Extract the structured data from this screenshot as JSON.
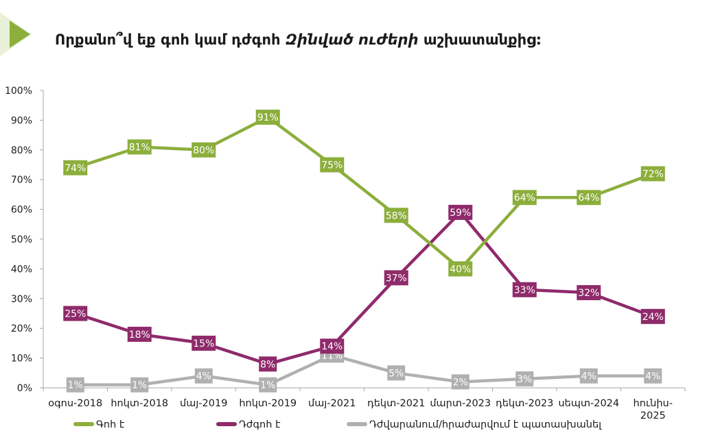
{
  "header": {
    "title_parts": [
      "Որքանո՞վ եք գոհ կամ դժգոհ ",
      "Զինված ուժերի",
      " աշխատանքից:"
    ]
  },
  "colors": {
    "green": "#8cae3c",
    "purple": "#8f2a6b",
    "gray": "#b0b0b0",
    "deco": "#e8f0d7"
  },
  "chart_data": {
    "type": "line",
    "categories": [
      "օգոս-2018",
      "հոկտ-2018",
      "մայ-2019",
      "հոկտ-2019",
      "մայ-2021",
      "դեկտ-2021",
      "մարտ-2023",
      "դեկտ-2023",
      "սեպտ-2024",
      "հունիս-2025"
    ],
    "category_lines": [
      [
        "օգոս-2018"
      ],
      [
        "հոկտ-2018"
      ],
      [
        "մայ-2019"
      ],
      [
        "հոկտ-2019"
      ],
      [
        "մայ-2021"
      ],
      [
        "դեկտ-2021"
      ],
      [
        "մարտ-2023"
      ],
      [
        "դեկտ-2023"
      ],
      [
        "սեպտ-2024"
      ],
      [
        "հունիս-",
        "2025"
      ]
    ],
    "ylim": [
      0,
      100
    ],
    "yticks": [
      "0%",
      "10%",
      "20%",
      "30%",
      "40%",
      "50%",
      "60%",
      "70%",
      "80%",
      "90%",
      "100%"
    ],
    "series": [
      {
        "name": "Գոհ է",
        "color": "#8cae3c",
        "values": [
          74,
          81,
          80,
          91,
          75,
          58,
          40,
          64,
          64,
          72
        ],
        "labels": [
          "74%",
          "81%",
          "80%",
          "91%",
          "75%",
          "58%",
          "40%",
          "64%",
          "64%",
          "72%"
        ]
      },
      {
        "name": "Դժգոհ է",
        "color": "#8f2a6b",
        "values": [
          25,
          18,
          15,
          8,
          14,
          37,
          59,
          33,
          32,
          24
        ],
        "labels": [
          "25%",
          "18%",
          "15%",
          "8%",
          "14%",
          "37%",
          "59%",
          "33%",
          "32%",
          "24%"
        ]
      },
      {
        "name": "Դժվարանում/հրաժարվում է պատասխանել",
        "color": "#b0b0b0",
        "values": [
          1,
          1,
          4,
          1,
          11,
          5,
          2,
          3,
          4,
          4
        ],
        "labels": [
          "1%",
          "1%",
          "4%",
          "1%",
          "11%",
          "5%",
          "2%",
          "3%",
          "4%",
          "4%"
        ]
      }
    ],
    "legend": "bottom-left"
  }
}
